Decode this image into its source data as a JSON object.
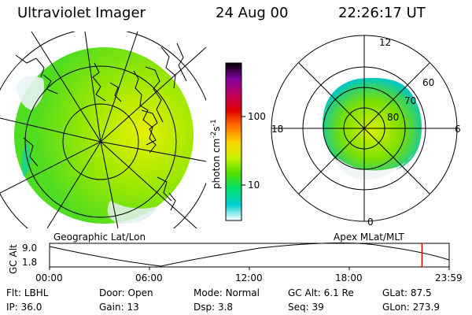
{
  "header": {
    "title": "Ultraviolet Imager",
    "date": "24 Aug 00",
    "time": "22:26:17 UT"
  },
  "maps": {
    "left_caption": "Geographic Lat/Lon",
    "right_caption": "Apex MLat/MLT",
    "mlt_labels": {
      "top": "12",
      "left": "18",
      "right": "6",
      "bottom": "0"
    },
    "lat_labels": [
      "60",
      "70",
      "80"
    ]
  },
  "colorbar": {
    "label": "photon cm",
    "exp1": "-2",
    "unit2": "s",
    "exp2": "-1",
    "ticks": [
      "100",
      "10"
    ],
    "stops": [
      "#ffffff",
      "#00d0d0",
      "#00e070",
      "#50e000",
      "#c8f000",
      "#ffd000",
      "#ff7000",
      "#e00000",
      "#c00060",
      "#8000a0",
      "#000000"
    ]
  },
  "timeline": {
    "y_label": "GC Alt",
    "y_ticks": [
      "9.0",
      "1.8"
    ],
    "x_ticks": [
      "00:00",
      "06:00",
      "12:00",
      "18:00",
      "23:59"
    ],
    "marker_fraction": 0.932,
    "marker_color": "#cc0000"
  },
  "info": {
    "row1": [
      {
        "label": "Flt:",
        "value": "LBHL"
      },
      {
        "label": "Door:",
        "value": "Open"
      },
      {
        "label": "Mode:",
        "value": "Normal"
      },
      {
        "label": "GC Alt:",
        "value": "6.1 Re"
      },
      {
        "label": "GLat:",
        "value": "87.5"
      }
    ],
    "row2": [
      {
        "label": "IP:",
        "value": "36.0"
      },
      {
        "label": "Gain:",
        "value": "13"
      },
      {
        "label": "Dsp:",
        "value": "3.8"
      },
      {
        "label": "Seq:",
        "value": "39"
      },
      {
        "label": "GLon:",
        "value": "273.9"
      }
    ]
  }
}
